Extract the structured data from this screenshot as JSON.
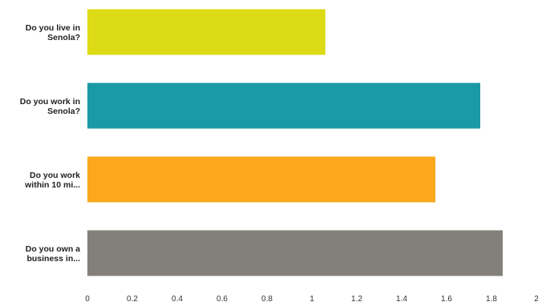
{
  "chart_data": {
    "type": "bar",
    "orientation": "horizontal",
    "categories": [
      [
        "Do you live in",
        "Senola?"
      ],
      [
        "Do you work in",
        "Senola?"
      ],
      [
        "Do you work",
        "within 10 mi..."
      ],
      [
        "Do you own a",
        "business in..."
      ]
    ],
    "values": [
      1.06,
      1.75,
      1.55,
      1.85
    ],
    "colors": [
      "#dddb16",
      "#1a9aa6",
      "#fba81c",
      "#828079"
    ],
    "xlim": [
      0,
      2
    ],
    "x_ticks": [
      "0",
      "0.2",
      "0.4",
      "0.6",
      "0.8",
      "1",
      "1.2",
      "1.4",
      "1.6",
      "1.8",
      "2"
    ],
    "grid": false,
    "legend": "none"
  }
}
